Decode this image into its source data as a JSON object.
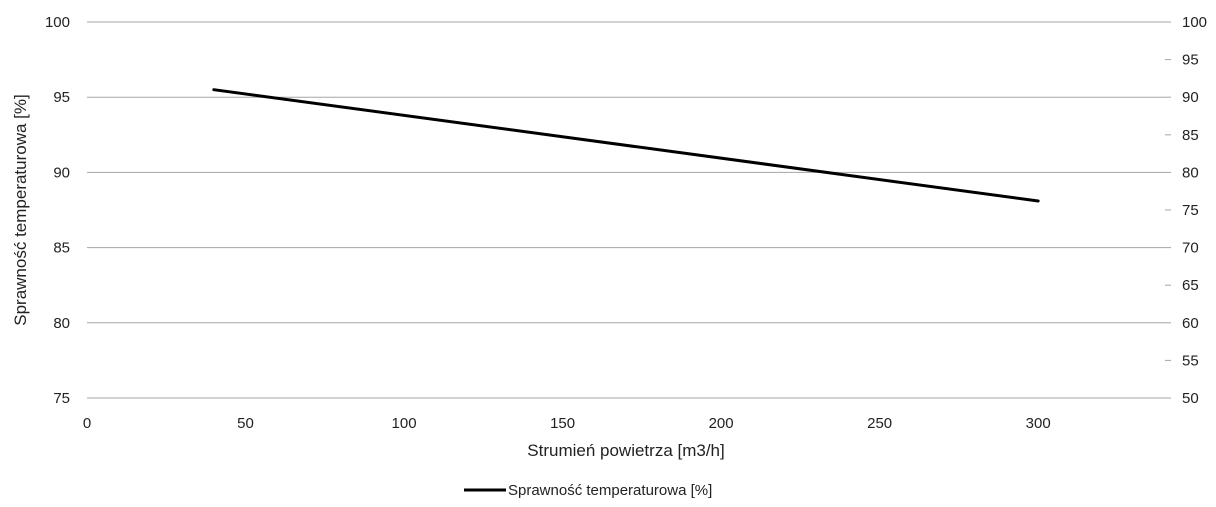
{
  "chart_data": {
    "type": "line",
    "title": "",
    "xlabel": "Strumień powietrza [m3/h]",
    "ylabel": "Sprawność temperaturowa [%]",
    "y2label": "",
    "xlim": [
      0,
      340
    ],
    "ylim": [
      75,
      100
    ],
    "y2lim": [
      50,
      100
    ],
    "x_ticks": [
      0,
      50,
      100,
      150,
      200,
      250,
      300
    ],
    "y_ticks": [
      75,
      80,
      85,
      90,
      95,
      100
    ],
    "y2_ticks": [
      50,
      55,
      60,
      65,
      70,
      75,
      80,
      85,
      90,
      95,
      100
    ],
    "grid": true,
    "legend_position": "bottom",
    "series": [
      {
        "name": "Sprawność temperaturowa [%]",
        "color": "#000000",
        "x": [
          40,
          300
        ],
        "y": [
          95.5,
          88.1
        ]
      }
    ]
  }
}
